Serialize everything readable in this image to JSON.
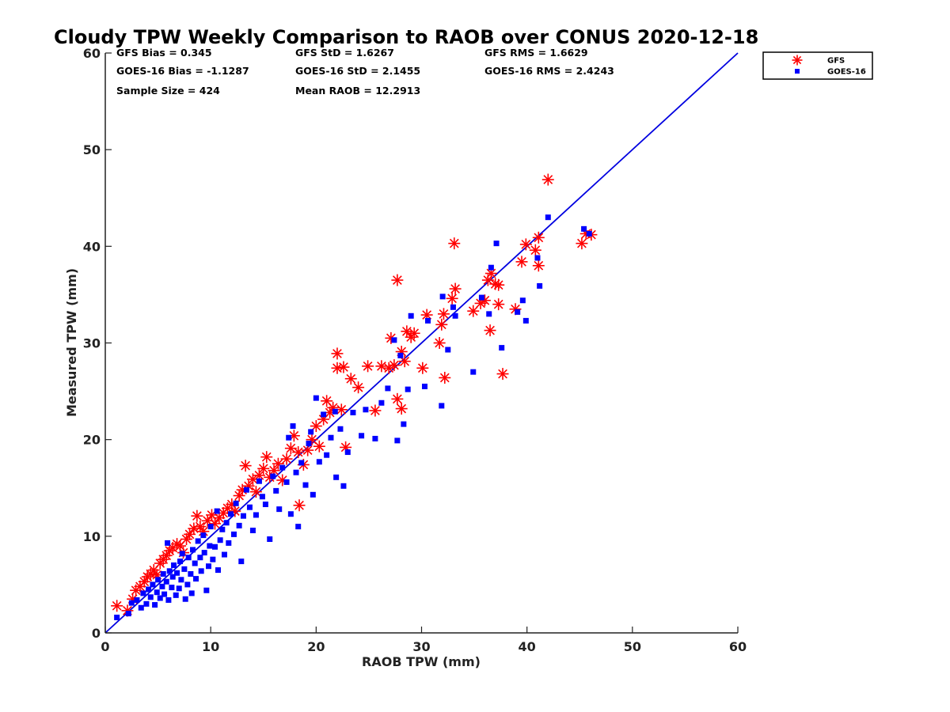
{
  "chart_data": {
    "type": "scatter",
    "title": "Cloudy TPW Weekly Comparison to RAOB over CONUS 2020-12-18",
    "xlabel": "RAOB TPW (mm)",
    "ylabel": "Measured TPW (mm)",
    "xlim": [
      0,
      60
    ],
    "ylim": [
      0,
      60
    ],
    "xticks": [
      "0",
      "10",
      "20",
      "30",
      "40",
      "50",
      "60"
    ],
    "yticks": [
      "0",
      "10",
      "20",
      "30",
      "40",
      "50",
      "60"
    ],
    "grid": false,
    "legend_position": "top-right outside",
    "reference_line": {
      "type": "1:1",
      "color": "#0000e0"
    },
    "stats": [
      [
        "GFS Bias = 0.345",
        "GFS StD = 1.6267",
        "GFS RMS = 1.6629"
      ],
      [
        "GOES-16 Bias = -1.1287",
        "GOES-16 StD = 2.1455",
        "GOES-16 RMS = 2.4243"
      ],
      [
        "Sample Size = 424",
        "Mean RAOB = 12.2913",
        ""
      ]
    ],
    "series": [
      {
        "name": "GFS",
        "marker": "asterisk",
        "color": "#ff0000",
        "points": [
          [
            1.1,
            2.8
          ],
          [
            2.1,
            2.3
          ],
          [
            2.6,
            3.5
          ],
          [
            2.9,
            4.4
          ],
          [
            3.3,
            4.8
          ],
          [
            3.7,
            5.3
          ],
          [
            4.0,
            5.8
          ],
          [
            4.3,
            6.1
          ],
          [
            4.6,
            6.5
          ],
          [
            4.9,
            6.0
          ],
          [
            5.2,
            7.2
          ],
          [
            5.5,
            7.6
          ],
          [
            5.8,
            8.0
          ],
          [
            6.1,
            8.5
          ],
          [
            6.4,
            8.8
          ],
          [
            6.8,
            9.2
          ],
          [
            7.1,
            9.0
          ],
          [
            7.4,
            8.3
          ],
          [
            7.7,
            9.7
          ],
          [
            8.0,
            10.2
          ],
          [
            8.4,
            10.8
          ],
          [
            8.7,
            12.1
          ],
          [
            9.0,
            11.0
          ],
          [
            9.3,
            10.5
          ],
          [
            9.7,
            11.6
          ],
          [
            10.1,
            12.2
          ],
          [
            10.4,
            11.3
          ],
          [
            10.8,
            11.9
          ],
          [
            11.2,
            12.4
          ],
          [
            11.6,
            12.9
          ],
          [
            12.0,
            13.3
          ],
          [
            12.3,
            12.6
          ],
          [
            12.7,
            14.2
          ],
          [
            13.0,
            14.8
          ],
          [
            13.3,
            17.3
          ],
          [
            13.6,
            15.2
          ],
          [
            14.0,
            15.9
          ],
          [
            14.3,
            14.6
          ],
          [
            14.6,
            16.3
          ],
          [
            15.0,
            17.0
          ],
          [
            15.3,
            18.2
          ],
          [
            15.6,
            16.1
          ],
          [
            16.0,
            16.8
          ],
          [
            16.4,
            17.5
          ],
          [
            16.8,
            15.8
          ],
          [
            17.2,
            18.0
          ],
          [
            17.6,
            19.1
          ],
          [
            17.9,
            20.4
          ],
          [
            18.3,
            18.7
          ],
          [
            18.4,
            13.2
          ],
          [
            18.8,
            17.4
          ],
          [
            19.2,
            18.9
          ],
          [
            19.6,
            20.0
          ],
          [
            20.0,
            21.4
          ],
          [
            20.3,
            19.3
          ],
          [
            20.7,
            22.1
          ],
          [
            21.0,
            24.0
          ],
          [
            21.3,
            22.8
          ],
          [
            21.6,
            23.3
          ],
          [
            22.0,
            28.9
          ],
          [
            22.0,
            27.4
          ],
          [
            22.4,
            23.1
          ],
          [
            22.6,
            27.5
          ],
          [
            22.8,
            19.2
          ],
          [
            23.3,
            26.3
          ],
          [
            24.0,
            25.4
          ],
          [
            24.9,
            27.6
          ],
          [
            25.6,
            23.0
          ],
          [
            26.2,
            27.6
          ],
          [
            26.9,
            27.4
          ],
          [
            27.1,
            30.5
          ],
          [
            27.4,
            27.7
          ],
          [
            27.7,
            36.5
          ],
          [
            27.7,
            24.2
          ],
          [
            28.1,
            29.1
          ],
          [
            28.1,
            23.2
          ],
          [
            28.4,
            28.1
          ],
          [
            28.6,
            31.2
          ],
          [
            29.0,
            30.6
          ],
          [
            29.3,
            31.0
          ],
          [
            30.1,
            27.4
          ],
          [
            30.5,
            32.9
          ],
          [
            31.7,
            30.0
          ],
          [
            31.9,
            31.9
          ],
          [
            32.1,
            33.0
          ],
          [
            32.2,
            26.4
          ],
          [
            32.9,
            34.6
          ],
          [
            33.1,
            40.3
          ],
          [
            33.2,
            35.6
          ],
          [
            34.9,
            33.3
          ],
          [
            35.6,
            34.1
          ],
          [
            36.0,
            34.4
          ],
          [
            36.3,
            36.5
          ],
          [
            36.5,
            31.3
          ],
          [
            36.6,
            37.2
          ],
          [
            37.0,
            36.1
          ],
          [
            37.3,
            36.0
          ],
          [
            37.3,
            34.0
          ],
          [
            37.7,
            26.8
          ],
          [
            38.9,
            33.5
          ],
          [
            39.5,
            38.4
          ],
          [
            39.9,
            40.2
          ],
          [
            40.8,
            39.6
          ],
          [
            41.1,
            40.9
          ],
          [
            41.1,
            38.0
          ],
          [
            42.0,
            46.9
          ],
          [
            45.2,
            40.3
          ],
          [
            45.6,
            41.3
          ],
          [
            46.1,
            41.2
          ]
        ]
      },
      {
        "name": "GOES-16",
        "marker": "square",
        "color": "#0000ff",
        "points": [
          [
            1.1,
            1.6
          ],
          [
            2.2,
            2.0
          ],
          [
            2.5,
            3.1
          ],
          [
            3.0,
            3.4
          ],
          [
            3.4,
            2.6
          ],
          [
            3.6,
            4.1
          ],
          [
            3.9,
            3.0
          ],
          [
            4.1,
            4.5
          ],
          [
            4.3,
            3.7
          ],
          [
            4.5,
            5.0
          ],
          [
            4.7,
            2.9
          ],
          [
            4.9,
            4.2
          ],
          [
            5.0,
            5.5
          ],
          [
            5.2,
            3.6
          ],
          [
            5.4,
            4.8
          ],
          [
            5.5,
            6.1
          ],
          [
            5.6,
            4.0
          ],
          [
            5.8,
            5.3
          ],
          [
            5.9,
            9.3
          ],
          [
            6.0,
            3.4
          ],
          [
            6.1,
            6.4
          ],
          [
            6.3,
            4.7
          ],
          [
            6.4,
            5.8
          ],
          [
            6.5,
            7.0
          ],
          [
            6.7,
            3.9
          ],
          [
            6.8,
            6.2
          ],
          [
            7.0,
            4.6
          ],
          [
            7.1,
            7.4
          ],
          [
            7.2,
            5.5
          ],
          [
            7.3,
            8.2
          ],
          [
            7.5,
            6.6
          ],
          [
            7.6,
            3.5
          ],
          [
            7.8,
            5.0
          ],
          [
            7.9,
            7.8
          ],
          [
            8.1,
            6.1
          ],
          [
            8.2,
            4.1
          ],
          [
            8.3,
            8.6
          ],
          [
            8.5,
            7.2
          ],
          [
            8.6,
            5.6
          ],
          [
            8.8,
            9.5
          ],
          [
            9.0,
            7.8
          ],
          [
            9.1,
            6.4
          ],
          [
            9.3,
            10.1
          ],
          [
            9.4,
            8.3
          ],
          [
            9.6,
            4.4
          ],
          [
            9.8,
            6.9
          ],
          [
            9.9,
            9.0
          ],
          [
            10.0,
            11.0
          ],
          [
            10.2,
            7.6
          ],
          [
            10.4,
            8.9
          ],
          [
            10.6,
            12.6
          ],
          [
            10.7,
            6.5
          ],
          [
            10.9,
            9.6
          ],
          [
            11.1,
            10.7
          ],
          [
            11.3,
            8.1
          ],
          [
            11.5,
            11.4
          ],
          [
            11.7,
            9.3
          ],
          [
            11.9,
            12.3
          ],
          [
            12.2,
            10.2
          ],
          [
            12.4,
            13.4
          ],
          [
            12.7,
            11.1
          ],
          [
            12.9,
            7.4
          ],
          [
            13.1,
            12.1
          ],
          [
            13.4,
            14.8
          ],
          [
            13.7,
            13.0
          ],
          [
            14.0,
            10.6
          ],
          [
            14.3,
            12.2
          ],
          [
            14.6,
            15.7
          ],
          [
            14.9,
            14.1
          ],
          [
            15.2,
            13.3
          ],
          [
            15.6,
            9.7
          ],
          [
            15.9,
            16.2
          ],
          [
            16.2,
            14.7
          ],
          [
            16.5,
            12.8
          ],
          [
            16.8,
            17.1
          ],
          [
            17.2,
            15.6
          ],
          [
            17.4,
            20.2
          ],
          [
            17.6,
            12.3
          ],
          [
            17.8,
            21.4
          ],
          [
            18.1,
            16.6
          ],
          [
            18.3,
            11.0
          ],
          [
            18.6,
            17.6
          ],
          [
            19.0,
            15.3
          ],
          [
            19.3,
            19.6
          ],
          [
            19.5,
            20.8
          ],
          [
            19.7,
            14.3
          ],
          [
            20.0,
            24.3
          ],
          [
            20.3,
            17.7
          ],
          [
            20.7,
            22.6
          ],
          [
            21.0,
            18.4
          ],
          [
            21.4,
            20.2
          ],
          [
            21.8,
            22.9
          ],
          [
            21.9,
            16.1
          ],
          [
            22.3,
            21.1
          ],
          [
            22.6,
            15.2
          ],
          [
            23.0,
            18.7
          ],
          [
            23.5,
            22.8
          ],
          [
            24.3,
            20.4
          ],
          [
            24.7,
            23.1
          ],
          [
            25.6,
            20.1
          ],
          [
            26.2,
            23.8
          ],
          [
            26.8,
            25.3
          ],
          [
            27.4,
            30.3
          ],
          [
            27.7,
            19.9
          ],
          [
            28.0,
            28.7
          ],
          [
            28.3,
            21.6
          ],
          [
            28.7,
            25.2
          ],
          [
            29.0,
            32.8
          ],
          [
            30.3,
            25.5
          ],
          [
            30.6,
            32.3
          ],
          [
            31.9,
            23.5
          ],
          [
            32.0,
            34.8
          ],
          [
            32.5,
            29.3
          ],
          [
            33.0,
            33.7
          ],
          [
            33.2,
            32.8
          ],
          [
            34.9,
            27.0
          ],
          [
            35.7,
            34.7
          ],
          [
            36.4,
            33.0
          ],
          [
            36.6,
            37.8
          ],
          [
            37.1,
            40.3
          ],
          [
            37.6,
            29.5
          ],
          [
            39.1,
            33.2
          ],
          [
            39.6,
            34.4
          ],
          [
            39.9,
            32.3
          ],
          [
            41.0,
            38.8
          ],
          [
            41.2,
            35.9
          ],
          [
            42.0,
            43.0
          ],
          [
            45.4,
            41.8
          ],
          [
            45.9,
            41.3
          ]
        ]
      }
    ]
  }
}
